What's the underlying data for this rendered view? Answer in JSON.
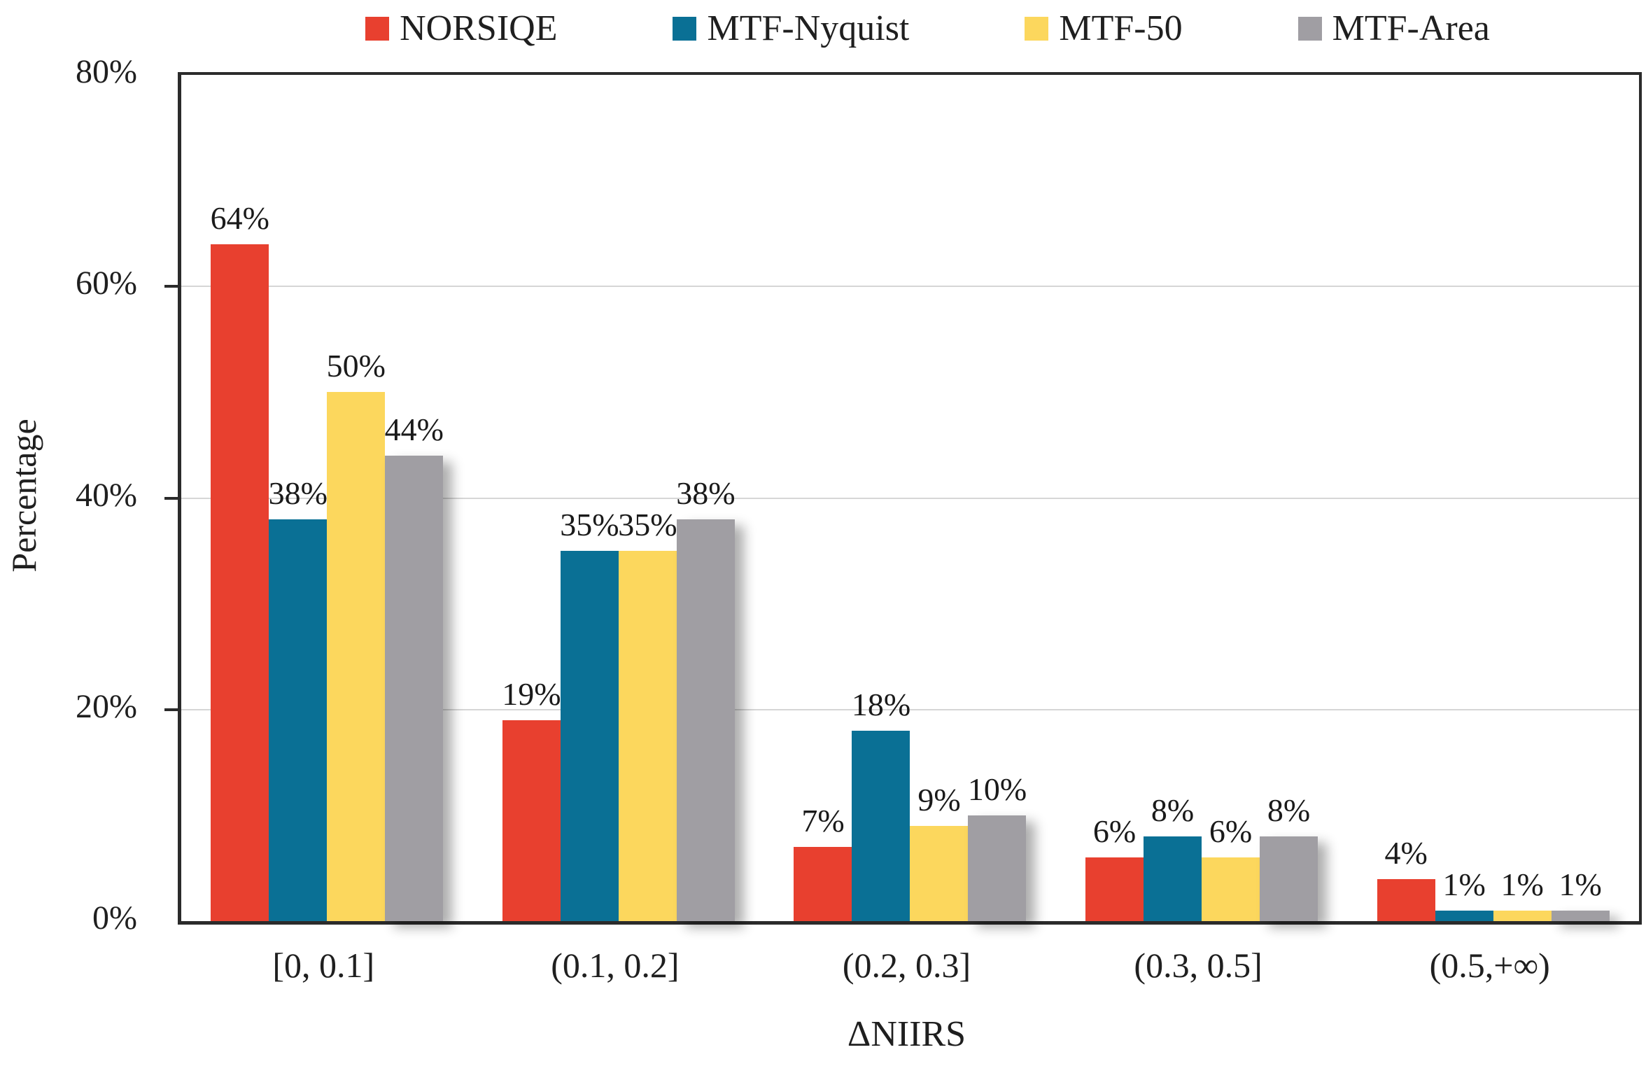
{
  "figure": {
    "ylabel": "Percentage",
    "xlabel": "ΔNIIRS"
  },
  "colors": {
    "axis": "#2b2b2b",
    "gridline": "#d6d6d6",
    "text": "#1f1f1f",
    "background": "#ffffff"
  },
  "chart_data": {
    "type": "bar",
    "title": "",
    "xlabel": "ΔNIIRS",
    "ylabel": "Percentage",
    "categories": [
      "[0, 0.1]",
      "(0.1, 0.2]",
      "(0.2, 0.3]",
      "(0.3, 0.5]",
      "(0.5,+∞)"
    ],
    "series": [
      {
        "name": "NORSIQE",
        "color": "#e8402f",
        "shadow": false,
        "values": [
          64,
          19,
          7,
          6,
          4
        ],
        "data_labels": [
          "64%",
          "19%",
          "7%",
          "6%",
          "4%"
        ]
      },
      {
        "name": "MTF-Nyquist",
        "color": "#0a7095",
        "shadow": false,
        "values": [
          38,
          35,
          18,
          8,
          1
        ],
        "data_labels": [
          "38%",
          "35%",
          "18%",
          "8%",
          "1%"
        ]
      },
      {
        "name": "MTF-50",
        "color": "#fcd75d",
        "shadow": false,
        "values": [
          50,
          35,
          9,
          6,
          1
        ],
        "data_labels": [
          "50%",
          "35%",
          "9%",
          "6%",
          "1%"
        ]
      },
      {
        "name": "MTF-Area",
        "color": "#a09ea3",
        "shadow": true,
        "values": [
          44,
          38,
          10,
          8,
          1
        ],
        "data_labels": [
          "44%",
          "38%",
          "10%",
          "8%",
          "1%"
        ]
      }
    ],
    "ylim": [
      0,
      80
    ],
    "yticks": {
      "values": [
        0,
        20,
        40,
        60,
        80
      ],
      "labels": [
        "0%",
        "20%",
        "40%",
        "60%",
        "80%"
      ]
    },
    "grid_values": [
      20,
      40,
      60
    ],
    "grid": true,
    "legend_position": "top"
  }
}
